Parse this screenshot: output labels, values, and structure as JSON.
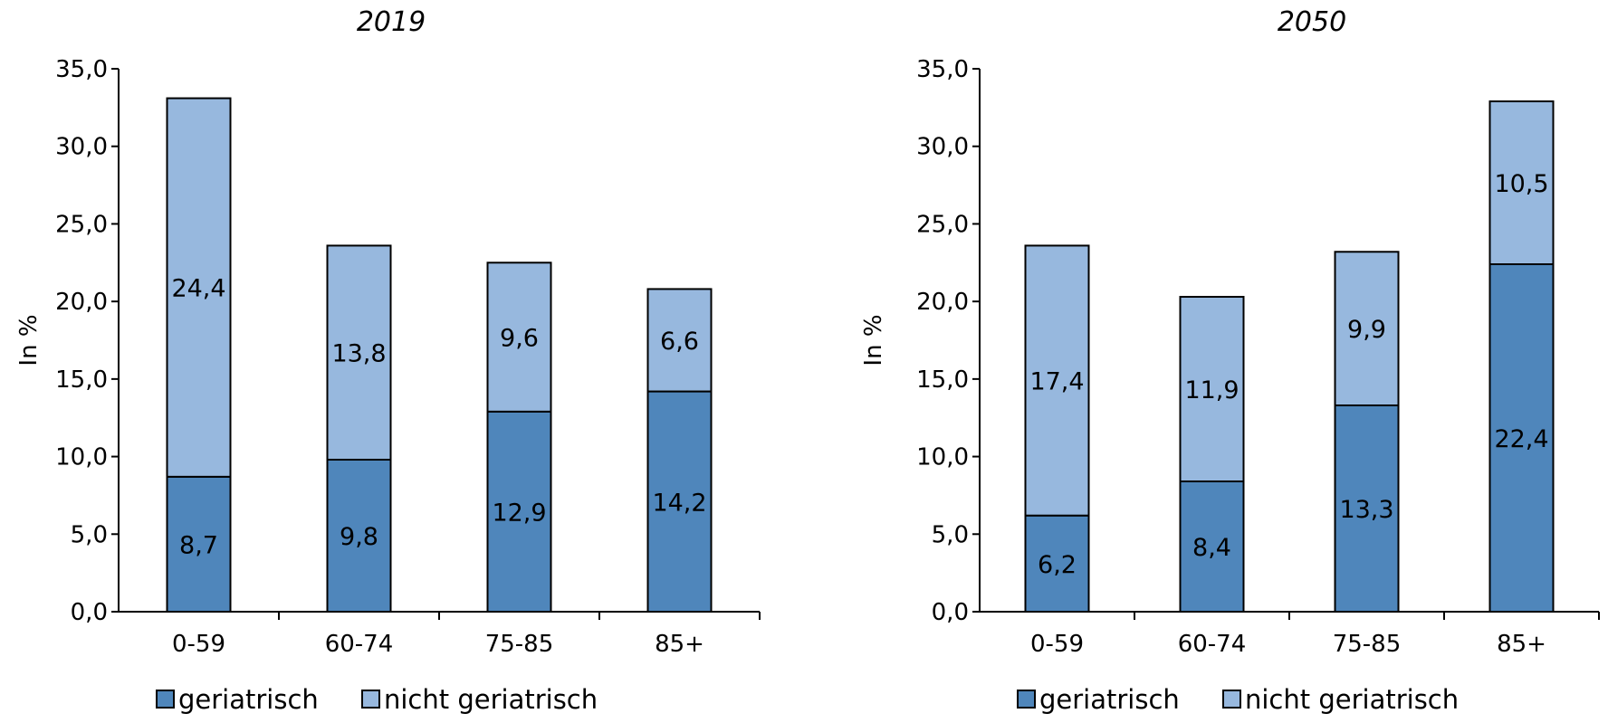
{
  "chart_data": [
    {
      "type": "bar",
      "stacked": true,
      "title": "2019",
      "ylabel": "In %",
      "ylim": [
        0,
        35
      ],
      "yticks": [
        "0,0",
        "5,0",
        "10,0",
        "15,0",
        "20,0",
        "25,0",
        "30,0",
        "35,0"
      ],
      "categories": [
        "0-59",
        "60-74",
        "75-85",
        "85+"
      ],
      "series": [
        {
          "name": "geriatrisch",
          "values": [
            8.7,
            9.8,
            12.9,
            14.2
          ],
          "labels": [
            "8,7",
            "9,8",
            "12,9",
            "14,2"
          ],
          "color": "#4f86bb"
        },
        {
          "name": "nicht geriatrisch",
          "values": [
            24.4,
            13.8,
            9.6,
            6.6
          ],
          "labels": [
            "24,4",
            "13,8",
            "9,6",
            "6,6"
          ],
          "color": "#97b8de"
        }
      ],
      "legend": "bottom-left",
      "grid": false
    },
    {
      "type": "bar",
      "stacked": true,
      "title": "2050",
      "ylabel": "In %",
      "ylim": [
        0,
        35
      ],
      "yticks": [
        "0,0",
        "5,0",
        "10,0",
        "15,0",
        "20,0",
        "25,0",
        "30,0",
        "35,0"
      ],
      "categories": [
        "0-59",
        "60-74",
        "75-85",
        "85+"
      ],
      "series": [
        {
          "name": "geriatrisch",
          "values": [
            6.2,
            8.4,
            13.3,
            22.4
          ],
          "labels": [
            "6,2",
            "8,4",
            "13,3",
            "22,4"
          ],
          "color": "#4f86bb"
        },
        {
          "name": "nicht geriatrisch",
          "values": [
            17.4,
            11.9,
            9.9,
            10.5
          ],
          "labels": [
            "17,4",
            "11,9",
            "9,9",
            "10,5"
          ],
          "color": "#97b8de"
        }
      ],
      "legend": "bottom-left",
      "grid": false
    }
  ]
}
